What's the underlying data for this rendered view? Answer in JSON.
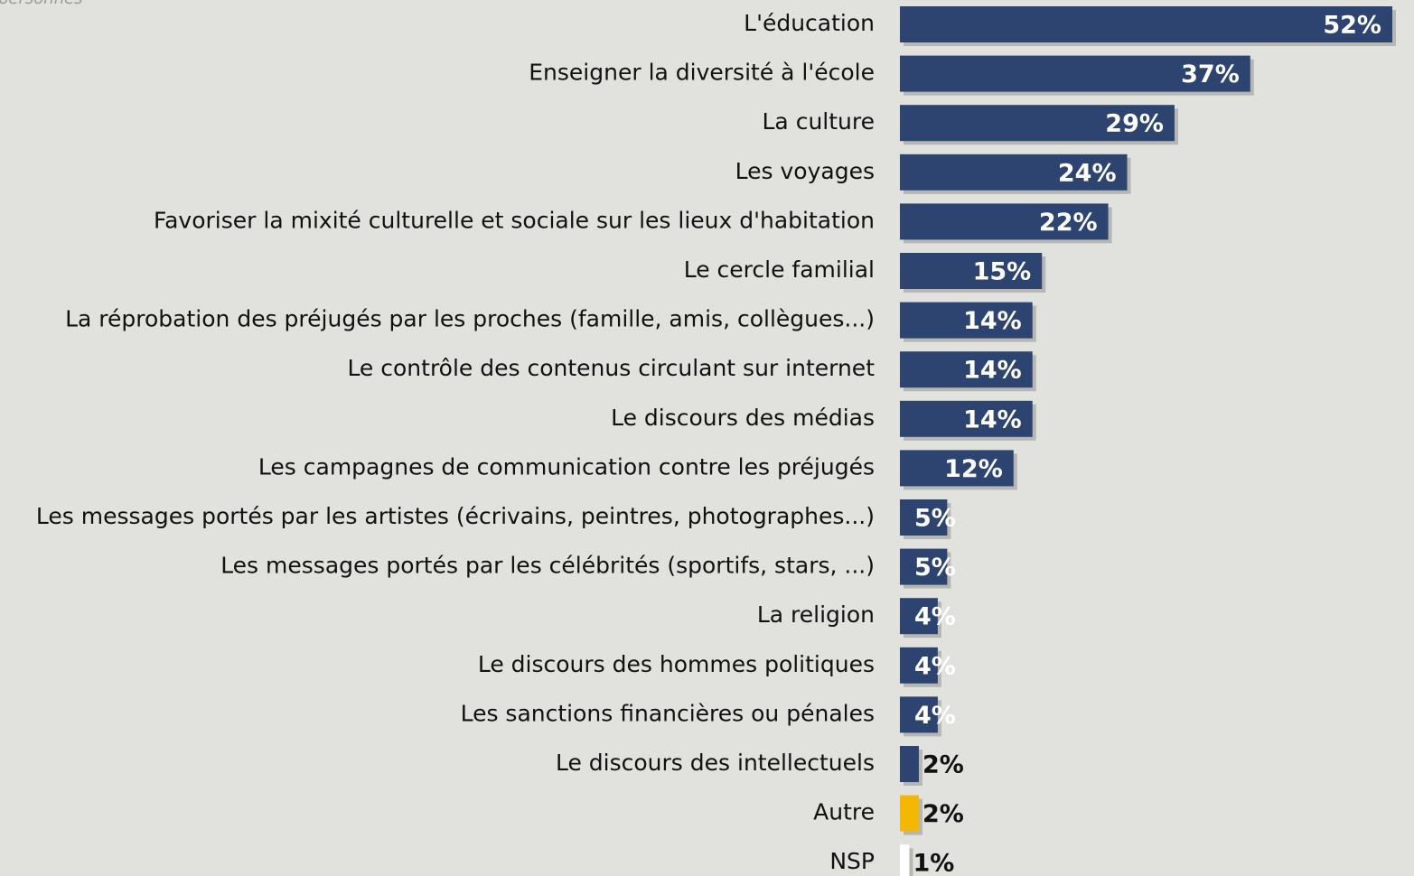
{
  "chart_data": {
    "type": "bar",
    "orientation": "horizontal",
    "subtitle": "personnes",
    "categories": [
      "L'éducation",
      "Enseigner la diversité à l'école",
      "La culture",
      "Les voyages",
      "Favoriser la mixité culturelle et sociale sur les lieux d'habitation",
      "Le cercle familial",
      "La réprobation des préjugés par les proches (famille, amis, collègues...)",
      "Le contrôle des contenus circulant sur internet",
      "Le discours des médias",
      "Les campagnes de communication contre les préjugés",
      "Les messages portés par les artistes (écrivains, peintres, photographes...)",
      "Les messages portés par les célébrités (sportifs, stars, ...)",
      "La religion",
      "Le discours des hommes politiques",
      "Les sanctions financières ou pénales",
      "Le discours des intellectuels",
      "Autre",
      "NSP"
    ],
    "values": [
      52,
      37,
      29,
      24,
      22,
      15,
      14,
      14,
      14,
      12,
      5,
      5,
      4,
      4,
      4,
      2,
      2,
      1
    ],
    "value_labels": [
      "52%",
      "37%",
      "29%",
      "24%",
      "22%",
      "15%",
      "14%",
      "14%",
      "14%",
      "12%",
      "5%",
      "5%",
      "4%",
      "4%",
      "4%",
      "2%",
      "2%",
      "1%"
    ],
    "colors": [
      "#2d4471",
      "#2d4471",
      "#2d4471",
      "#2d4471",
      "#2d4471",
      "#2d4471",
      "#2d4471",
      "#2d4471",
      "#2d4471",
      "#2d4471",
      "#2d4471",
      "#2d4471",
      "#2d4471",
      "#2d4471",
      "#2d4471",
      "#2d4471",
      "#f5b800",
      "#ffffff"
    ]
  }
}
